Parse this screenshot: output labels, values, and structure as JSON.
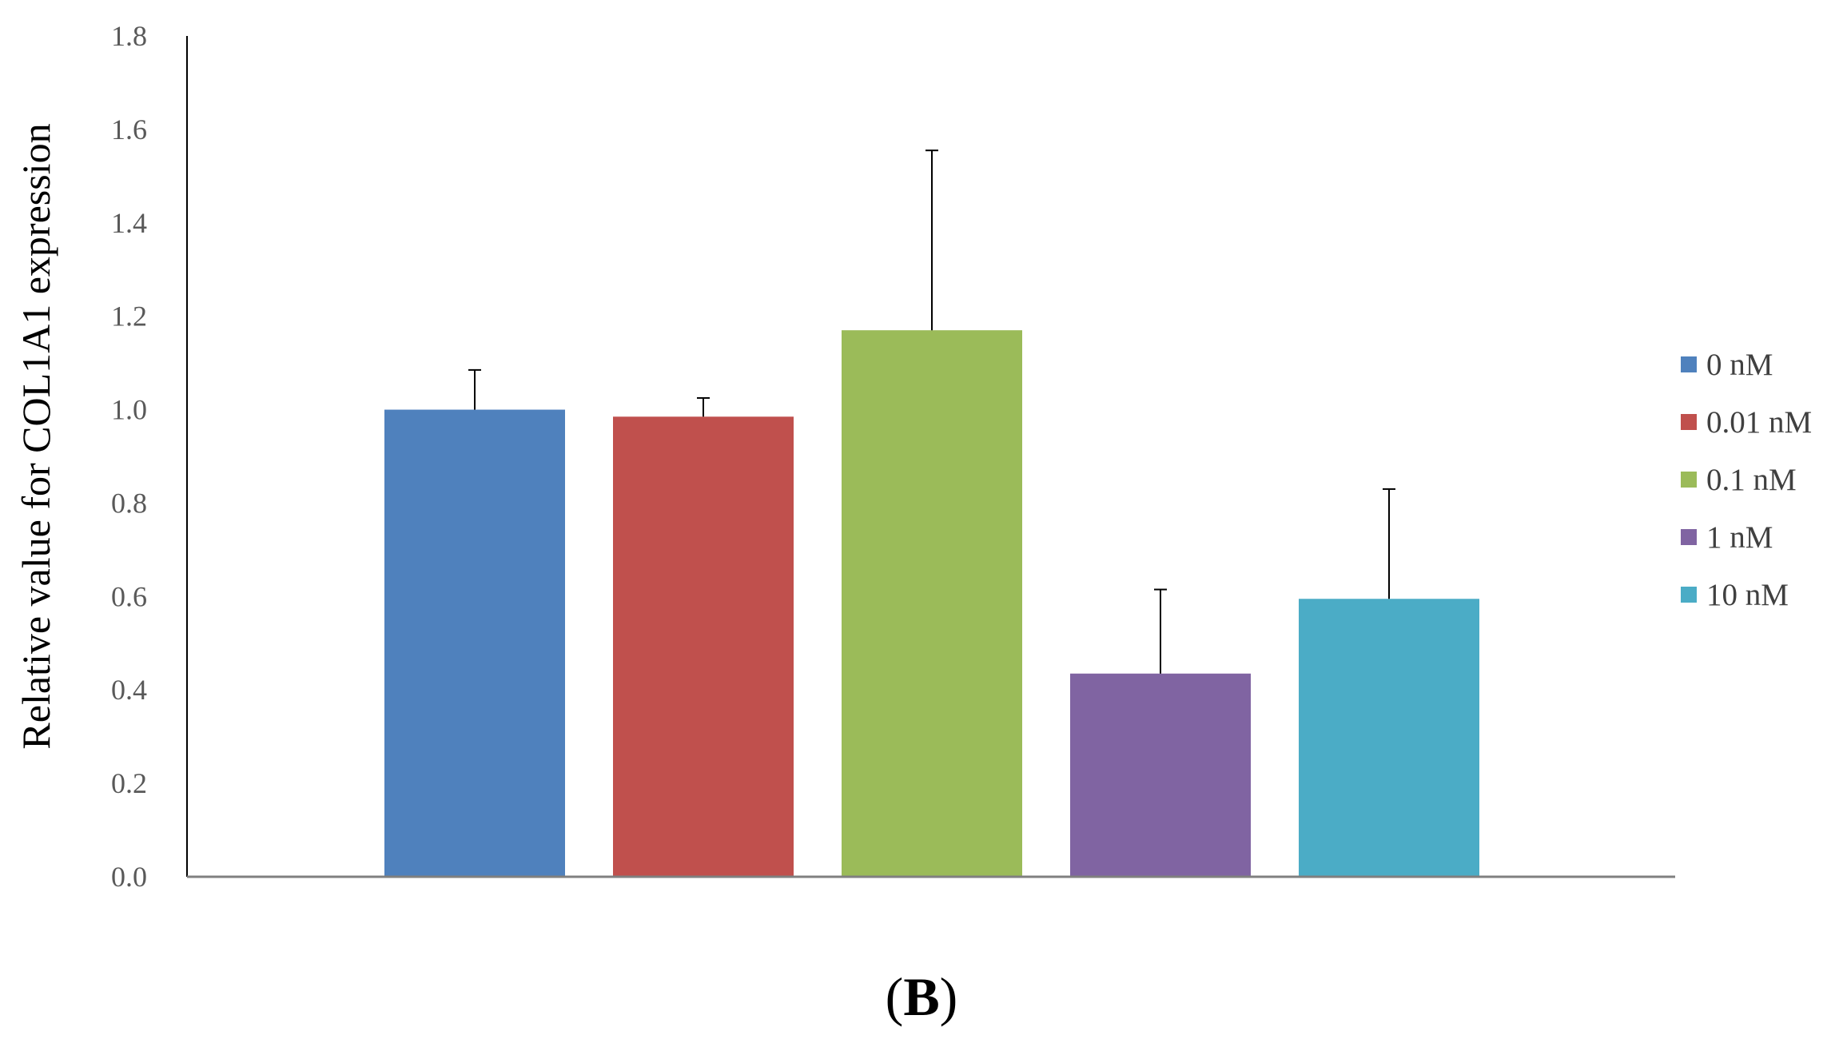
{
  "chart_data": {
    "type": "bar",
    "ylabel": "Relative value for COL1A1 expression",
    "xlabel": "",
    "ylim": [
      0,
      1.8
    ],
    "yticks": [
      "0.0",
      "0.2",
      "0.4",
      "0.6",
      "0.8",
      "1.0",
      "1.2",
      "1.4",
      "1.6",
      "1.8"
    ],
    "grid": false,
    "legend_position": "right",
    "series": [
      {
        "name": "0 nM",
        "value": 1.0,
        "error": 0.085,
        "color": "#4F81BD"
      },
      {
        "name": "0.01 nM",
        "value": 0.985,
        "error": 0.04,
        "color": "#C0504D"
      },
      {
        "name": "0.1 nM",
        "value": 1.17,
        "error": 0.385,
        "color": "#9BBB59"
      },
      {
        "name": "1 nM",
        "value": 0.435,
        "error": 0.18,
        "color": "#8064A2"
      },
      {
        "name": "10 nM",
        "value": 0.595,
        "error": 0.235,
        "color": "#4BACC6"
      }
    ]
  },
  "panel_label": {
    "open": "(",
    "letter": "B",
    "close": ")"
  }
}
